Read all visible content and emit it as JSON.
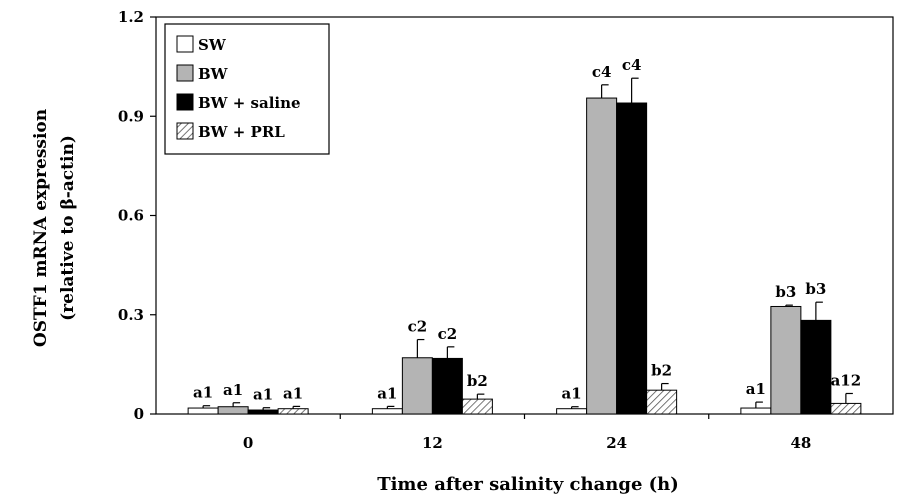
{
  "chart_data": {
    "type": "bar",
    "title": "",
    "xlabel": "Time after salinity change (h)",
    "ylabel_line1": "OSTF1 mRNA expression",
    "ylabel_line2": "(relative to β-actin)",
    "categories": [
      "0",
      "12",
      "24",
      "48"
    ],
    "ylim": [
      0,
      1.2
    ],
    "yticks": [
      "0",
      "0.3",
      "0.6",
      "0.9",
      "1.2"
    ],
    "ytick_values": [
      0,
      0.3,
      0.6,
      0.9,
      1.2
    ],
    "grid": false,
    "legend_position": "top-left",
    "series": [
      {
        "name": "SW",
        "fill": "#ffffff",
        "pattern": "none",
        "values": [
          0.018,
          0.016,
          0.016,
          0.018
        ],
        "errors": [
          0.007,
          0.007,
          0.006,
          0.018
        ],
        "labels": [
          "a1",
          "a1",
          "a1",
          "a1"
        ]
      },
      {
        "name": "BW",
        "fill": "#b4b4b4",
        "pattern": "none",
        "values": [
          0.022,
          0.17,
          0.955,
          0.325
        ],
        "errors": [
          0.012,
          0.055,
          0.04,
          0.004
        ],
        "labels": [
          "a1",
          "c2",
          "c4",
          "b3"
        ]
      },
      {
        "name": "BW + saline",
        "fill": "#000000",
        "pattern": "none",
        "values": [
          0.012,
          0.168,
          0.94,
          0.283
        ],
        "errors": [
          0.007,
          0.035,
          0.075,
          0.055
        ],
        "labels": [
          "a1",
          "c2",
          "c4",
          "b3"
        ]
      },
      {
        "name": "BW + PRL",
        "fill": "#ffffff",
        "pattern": "hatch",
        "values": [
          0.016,
          0.045,
          0.072,
          0.032
        ],
        "errors": [
          0.007,
          0.015,
          0.02,
          0.03
        ],
        "labels": [
          "a1",
          "b2",
          "b2",
          "a12"
        ]
      }
    ]
  }
}
